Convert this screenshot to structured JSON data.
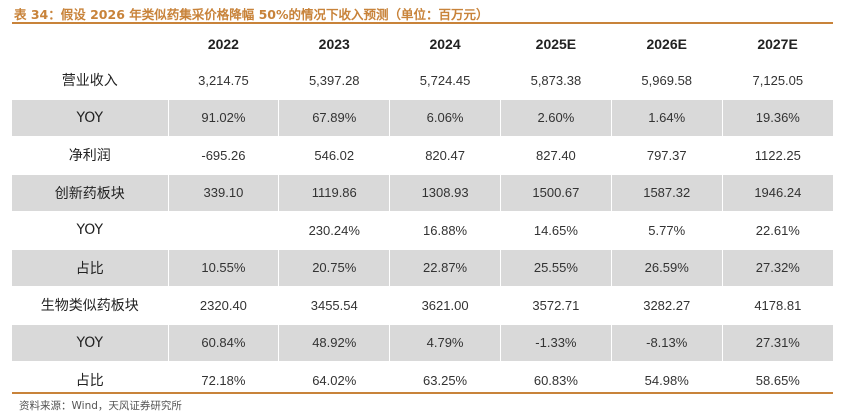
{
  "title": "表 34：假设 2026 年类似药集采价格降幅 50%的情况下收入预测（单位：百万元）",
  "table": {
    "headers": [
      "",
      "2022",
      "2023",
      "2024",
      "2025E",
      "2026E",
      "2027E"
    ],
    "rows": [
      {
        "label": "营业收入",
        "values": [
          "3,214.75",
          "5,397.28",
          "5,724.45",
          "5,873.38",
          "5,969.58",
          "7,125.05"
        ]
      },
      {
        "label": "YOY",
        "values": [
          "91.02%",
          "67.89%",
          "6.06%",
          "2.60%",
          "1.64%",
          "19.36%"
        ]
      },
      {
        "label": "净利润",
        "values": [
          "-695.26",
          "546.02",
          "820.47",
          "827.40",
          "797.37",
          "1122.25"
        ]
      },
      {
        "label": "创新药板块",
        "values": [
          "339.10",
          "1119.86",
          "1308.93",
          "1500.67",
          "1587.32",
          "1946.24"
        ]
      },
      {
        "label": "YOY",
        "values": [
          "",
          "230.24%",
          "16.88%",
          "14.65%",
          "5.77%",
          "22.61%"
        ]
      },
      {
        "label": "占比",
        "values": [
          "10.55%",
          "20.75%",
          "22.87%",
          "25.55%",
          "26.59%",
          "27.32%"
        ]
      },
      {
        "label": "生物类似药板块",
        "values": [
          "2320.40",
          "3455.54",
          "3621.00",
          "3572.71",
          "3282.27",
          "4178.81"
        ]
      },
      {
        "label": "YOY",
        "values": [
          "60.84%",
          "48.92%",
          "4.79%",
          "-1.33%",
          "-8.13%",
          "27.31%"
        ]
      },
      {
        "label": "占比",
        "values": [
          "72.18%",
          "64.02%",
          "63.25%",
          "60.83%",
          "54.98%",
          "58.65%"
        ]
      }
    ]
  },
  "source": "资料来源：Wind，天风证券研究所",
  "colors": {
    "accent": "#c8833a",
    "shaded_row": "#d9d9d9"
  }
}
